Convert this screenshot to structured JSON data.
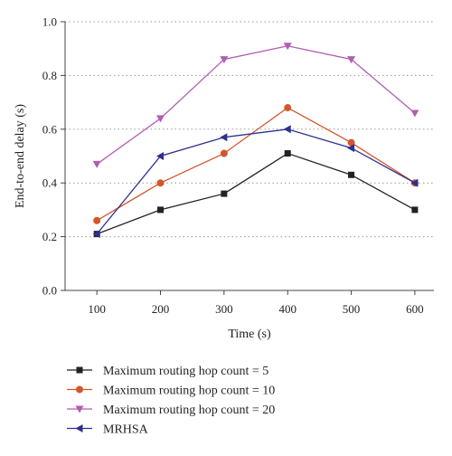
{
  "chart_data": {
    "type": "line",
    "title": "",
    "xlabel": "Time (s)",
    "ylabel": "End-to-end delay (s)",
    "x": [
      100,
      200,
      300,
      400,
      500,
      600
    ],
    "xlim": [
      50,
      630
    ],
    "ylim": [
      0.0,
      1.0
    ],
    "x_ticks": [
      "100",
      "200",
      "300",
      "400",
      "500",
      "600"
    ],
    "y_ticks": [
      "0.0",
      "0.2",
      "0.4",
      "0.6",
      "0.8",
      "1.0"
    ],
    "grid": "horizontal-dotted",
    "legend_position": "bottom",
    "series": [
      {
        "name": "Maximum routing hop count = 5",
        "color": "#222222",
        "marker": "square",
        "values": [
          0.21,
          0.3,
          0.36,
          0.51,
          0.43,
          0.3
        ]
      },
      {
        "name": "Maximum routing hop count = 10",
        "color": "#d4562d",
        "marker": "circle",
        "values": [
          0.26,
          0.4,
          0.51,
          0.68,
          0.55,
          0.4
        ]
      },
      {
        "name": "Maximum routing hop count = 20",
        "color": "#b35cb4",
        "marker": "triangle-down",
        "values": [
          0.47,
          0.64,
          0.86,
          0.91,
          0.86,
          0.66
        ]
      },
      {
        "name": "MRHSA",
        "color": "#2f2f8f",
        "marker": "triangle-left",
        "values": [
          0.21,
          0.5,
          0.57,
          0.6,
          0.53,
          0.4
        ]
      }
    ]
  }
}
